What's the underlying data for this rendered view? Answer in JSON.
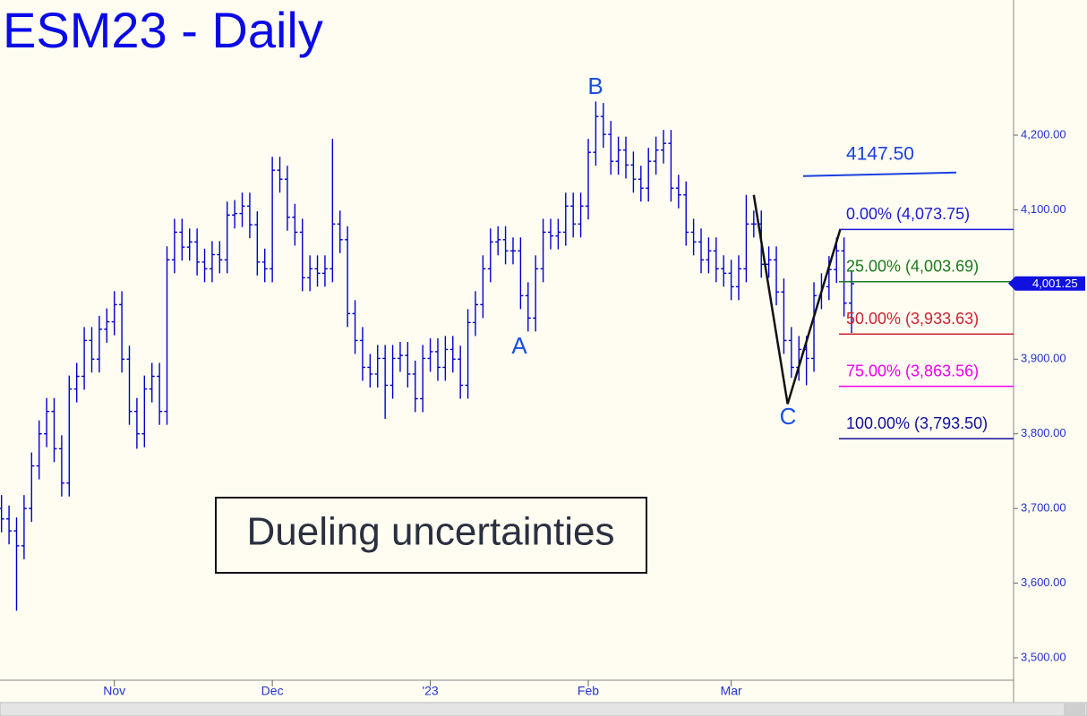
{
  "chart_data": {
    "type": "ohlc",
    "title": "ESM23 - Daily",
    "color": "#0000d0",
    "xlim": [
      -0.2,
      134.3
    ],
    "xticks": [
      {
        "value": 15,
        "label": "Nov"
      },
      {
        "value": 36,
        "label": "Dec"
      },
      {
        "value": 57,
        "label": "'23"
      },
      {
        "value": 78,
        "label": "Feb"
      },
      {
        "value": 97,
        "label": "Mar"
      }
    ],
    "ylim": [
      3470,
      4381
    ],
    "yticks": [
      {
        "value": 3500,
        "label": "3,500.00"
      },
      {
        "value": 3600,
        "label": "3,600.00"
      },
      {
        "value": 3700,
        "label": "3,700.00"
      },
      {
        "value": 3800,
        "label": "3,800.00"
      },
      {
        "value": 3900,
        "label": "3,900.00"
      },
      {
        "value": 4000,
        "label": "4,000.00"
      },
      {
        "value": 4100,
        "label": "4,100.00"
      },
      {
        "value": 4200,
        "label": "4,200.00"
      }
    ],
    "open": [
      3700,
      3686,
      3670,
      3650,
      3700,
      3757,
      3800,
      3830,
      3780,
      3734,
      3860,
      3877,
      3925,
      3900,
      3940,
      3950,
      3973,
      3900,
      3830,
      3800,
      3860,
      3877,
      3830,
      4033,
      4070,
      4050,
      4057,
      4030,
      4021,
      4040,
      4033,
      4093,
      4095,
      4105,
      4080,
      4030,
      4021,
      4153,
      4141,
      4090,
      4070,
      4009,
      4021,
      4015,
      4021,
      4081,
      4060,
      3961,
      3925,
      3889,
      3880,
      3901,
      3865,
      3901,
      3905,
      3880,
      3847,
      3901,
      3910,
      3889,
      3913,
      3900,
      3865,
      3949,
      3973,
      4021,
      4057,
      4060,
      4045,
      4045,
      3985,
      3955,
      4021,
      4070,
      4065,
      4070,
      4105,
      4081,
      4105,
      4177,
      4225,
      4201,
      4165,
      4180,
      4160,
      4141,
      4129,
      4165,
      4180,
      4189,
      4129,
      4120,
      4070,
      4057,
      4033,
      4045,
      4021,
      4015,
      3997,
      4021,
      4081,
      4081,
      4027,
      4033,
      3990,
      3925,
      3889,
      3913,
      3901,
      3985,
      3997,
      4020,
      4045,
      3975
    ],
    "high": [
      3718,
      3704,
      3688,
      3718,
      3775,
      3818,
      3848,
      3848,
      3798,
      3878,
      3895,
      3943,
      3943,
      3958,
      3968,
      3991,
      3991,
      3918,
      3848,
      3878,
      3895,
      3895,
      4051,
      4088,
      4088,
      4075,
      4075,
      4048,
      4058,
      4058,
      4111,
      4113,
      4123,
      4123,
      4098,
      4048,
      4171,
      4171,
      4159,
      4108,
      4088,
      4039,
      4039,
      4039,
      4195,
      4099,
      4078,
      3979,
      3943,
      3907,
      3919,
      3919,
      3919,
      3923,
      3923,
      3898,
      3919,
      3928,
      3928,
      3931,
      3931,
      3918,
      3967,
      3991,
      4039,
      4075,
      4078,
      4078,
      4063,
      4063,
      4003,
      4039,
      4088,
      4088,
      4088,
      4123,
      4123,
      4123,
      4195,
      4245,
      4243,
      4219,
      4198,
      4198,
      4178,
      4159,
      4183,
      4198,
      4207,
      4207,
      4147,
      4138,
      4088,
      4075,
      4063,
      4063,
      4039,
      4033,
      4039,
      4120,
      4099,
      4099,
      4051,
      4051,
      4008,
      3943,
      3931,
      3931,
      4003,
      4015,
      4038,
      4063,
      4063,
      4019
    ],
    "low": [
      3668,
      3652,
      3563,
      3632,
      3682,
      3739,
      3782,
      3762,
      3716,
      3716,
      3842,
      3859,
      3882,
      3882,
      3922,
      3932,
      3882,
      3812,
      3780,
      3782,
      3842,
      3812,
      3812,
      4015,
      4032,
      4032,
      4012,
      4003,
      4003,
      4015,
      4015,
      4075,
      4077,
      4062,
      4012,
      4003,
      4003,
      4123,
      4072,
      4052,
      3991,
      3991,
      3997,
      3997,
      4003,
      4042,
      3943,
      3907,
      3871,
      3862,
      3862,
      3820,
      3847,
      3883,
      3862,
      3829,
      3829,
      3883,
      3871,
      3871,
      3882,
      3847,
      3847,
      3931,
      3955,
      4003,
      4039,
      4027,
      4027,
      3967,
      3937,
      3937,
      4003,
      4047,
      4047,
      4052,
      4063,
      4063,
      4087,
      4159,
      4183,
      4147,
      4147,
      4142,
      4123,
      4111,
      4111,
      4147,
      4162,
      4111,
      4102,
      4052,
      4039,
      4015,
      4015,
      4003,
      3997,
      3979,
      3979,
      4003,
      4063,
      4009,
      4009,
      3972,
      3907,
      3875,
      3871,
      3865,
      3883,
      3967,
      3979,
      4002,
      3957,
      3935
    ],
    "close": [
      3686,
      3670,
      3650,
      3700,
      3757,
      3800,
      3830,
      3780,
      3734,
      3860,
      3877,
      3925,
      3900,
      3940,
      3950,
      3973,
      3900,
      3830,
      3800,
      3860,
      3877,
      3830,
      4033,
      4070,
      4050,
      4057,
      4030,
      4021,
      4040,
      4033,
      4093,
      4095,
      4105,
      4080,
      4030,
      4021,
      4153,
      4141,
      4090,
      4070,
      4009,
      4021,
      4015,
      4021,
      4081,
      4060,
      3961,
      3925,
      3889,
      3880,
      3901,
      3865,
      3901,
      3905,
      3880,
      3847,
      3901,
      3910,
      3889,
      3913,
      3900,
      3865,
      3949,
      3973,
      4021,
      4057,
      4060,
      4045,
      4045,
      3985,
      3955,
      4021,
      4070,
      4065,
      4070,
      4105,
      4081,
      4105,
      4177,
      4225,
      4201,
      4165,
      4180,
      4160,
      4141,
      4129,
      4165,
      4180,
      4189,
      4129,
      4120,
      4070,
      4057,
      4033,
      4045,
      4021,
      4015,
      3997,
      4021,
      4081,
      4081,
      4027,
      4033,
      3990,
      3925,
      3889,
      3913,
      3901,
      3985,
      3997,
      4020,
      4045,
      3975,
      4001
    ],
    "last_price": {
      "value": 4001.25,
      "label": "4,001.25"
    },
    "target": {
      "value": 4147.5,
      "label": "4147.50",
      "color": "#1a3fe0"
    },
    "fib_levels": [
      {
        "value": 4073.75,
        "label": "0.00% (4,073.75)",
        "color": "#1a1ad8"
      },
      {
        "value": 4003.69,
        "label": "25.00% (4,003.69)",
        "color": "#1c7a1c"
      },
      {
        "value": 3933.63,
        "label": "50.00% (3,933.63)",
        "color": "#cc2233"
      },
      {
        "value": 3863.56,
        "label": "75.00% (3,863.56)",
        "color": "#ee00ee"
      },
      {
        "value": 3793.5,
        "label": "100.00% (3,793.50)",
        "color": "#10109a"
      }
    ],
    "zigzag": {
      "x": [
        100,
        104.5,
        111.5
      ],
      "values": [
        4120,
        3840,
        4073.75
      ],
      "color": "#111111"
    },
    "wave_labels": [
      "A",
      "B",
      "C"
    ],
    "note": "Dueling uncertainties"
  }
}
